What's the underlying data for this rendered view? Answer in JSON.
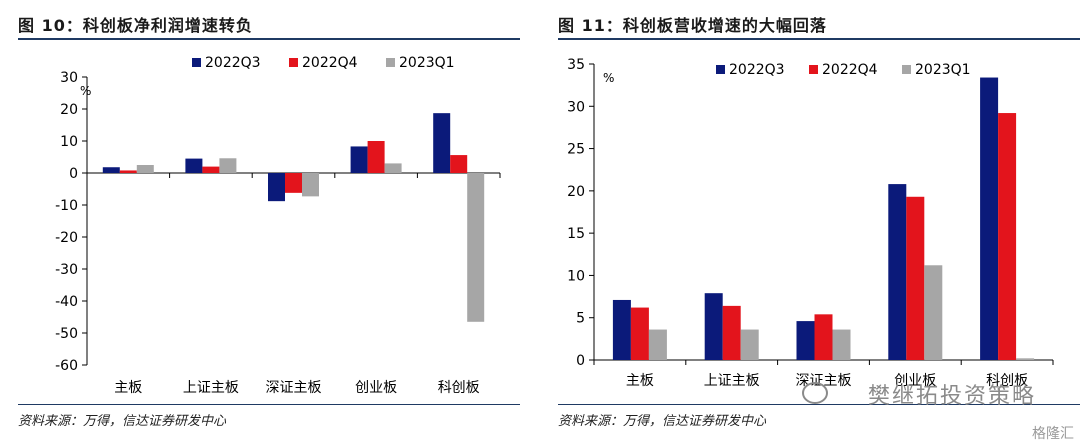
{
  "left": {
    "title": "图 10：科创板净利润增速转负",
    "source": "资料来源：万得，信达证券研发中心"
  },
  "right": {
    "title": "图 11：科创板营收增速的大幅回落",
    "source": "资料来源：万得，信达证券研发中心"
  },
  "watermark": {
    "text": "樊继拓投资策略",
    "icon": "wechat-icon"
  },
  "logo": {
    "text": "格隆汇"
  },
  "colors": {
    "series": [
      "#0b1a7a",
      "#e3141c",
      "#a6a6a6"
    ],
    "rule": "#1f3a63"
  },
  "chart_data": [
    {
      "type": "bar",
      "ylabel": "%",
      "ylim": [
        -60,
        30
      ],
      "yticks": [
        30,
        20,
        10,
        0,
        -10,
        -20,
        -30,
        -40,
        -50,
        -60
      ],
      "categories": [
        "主板",
        "上证主板",
        "深证主板",
        "创业板",
        "科创板"
      ],
      "legend_position": "top",
      "grid": false,
      "series": [
        {
          "name": "2022Q3",
          "values": [
            1.8,
            4.5,
            -8.8,
            8.3,
            18.7
          ]
        },
        {
          "name": "2022Q4",
          "values": [
            0.8,
            2.0,
            -6.2,
            10.0,
            5.6
          ]
        },
        {
          "name": "2023Q1",
          "values": [
            2.5,
            4.6,
            -7.3,
            3.0,
            -46.5
          ]
        }
      ]
    },
    {
      "type": "bar",
      "ylabel": "%",
      "ylim": [
        0,
        35
      ],
      "yticks": [
        35,
        30,
        25,
        20,
        15,
        10,
        5,
        0
      ],
      "categories": [
        "主板",
        "上证主板",
        "深证主板",
        "创业板",
        "科创板"
      ],
      "legend_position": "top",
      "grid": false,
      "series": [
        {
          "name": "2022Q3",
          "values": [
            7.1,
            7.9,
            4.6,
            20.8,
            33.4
          ]
        },
        {
          "name": "2022Q4",
          "values": [
            6.2,
            6.4,
            5.4,
            19.3,
            29.2
          ]
        },
        {
          "name": "2023Q1",
          "values": [
            3.6,
            3.6,
            3.6,
            11.2,
            0.2
          ]
        }
      ]
    }
  ]
}
